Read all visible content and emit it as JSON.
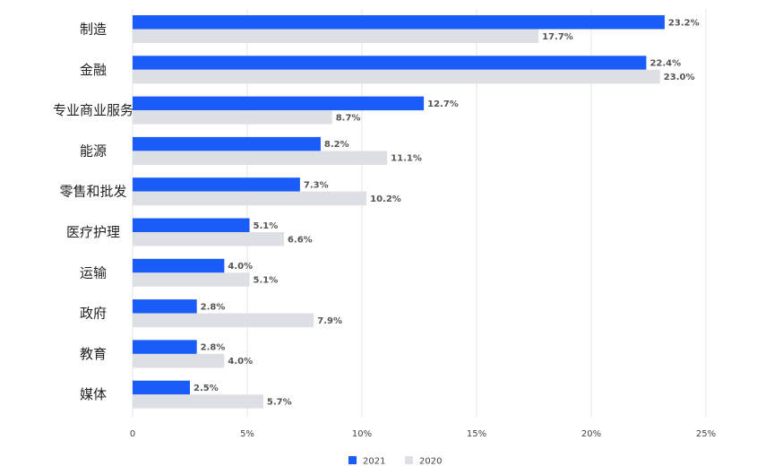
{
  "chart_data": {
    "type": "bar",
    "orientation": "horizontal",
    "categories": [
      "制造",
      "金融",
      "专业商业服务",
      "能源",
      "零售和批发",
      "医疗护理",
      "运输",
      "政府",
      "教育",
      "媒体"
    ],
    "series": [
      {
        "name": "2021",
        "values": [
          23.2,
          22.4,
          12.7,
          8.2,
          7.3,
          5.1,
          4.0,
          2.8,
          2.8,
          2.5
        ],
        "labels": [
          "23.2%",
          "22.4%",
          "12.7%",
          "8.2%",
          "7.3%",
          "5.1%",
          "4.0%",
          "2.8%",
          "2.8%",
          "2.5%"
        ],
        "color": "#1a5cf7"
      },
      {
        "name": "2020",
        "values": [
          17.7,
          23.0,
          8.7,
          11.1,
          10.2,
          6.6,
          5.1,
          7.9,
          4.0,
          5.7
        ],
        "labels": [
          "17.7%",
          "23.0%",
          "8.7%",
          "11.1%",
          "10.2%",
          "6.6%",
          "5.1%",
          "7.9%",
          "4.0%",
          "5.7%"
        ],
        "color": "#dcdfe3"
      }
    ],
    "xlim": [
      0,
      25
    ],
    "xticks": [
      0,
      5,
      10,
      15,
      20,
      25
    ],
    "xtick_labels": [
      "0",
      "5%",
      "10%",
      "15%",
      "20%",
      "25%"
    ],
    "grid": true,
    "legend": "bottom-center"
  }
}
